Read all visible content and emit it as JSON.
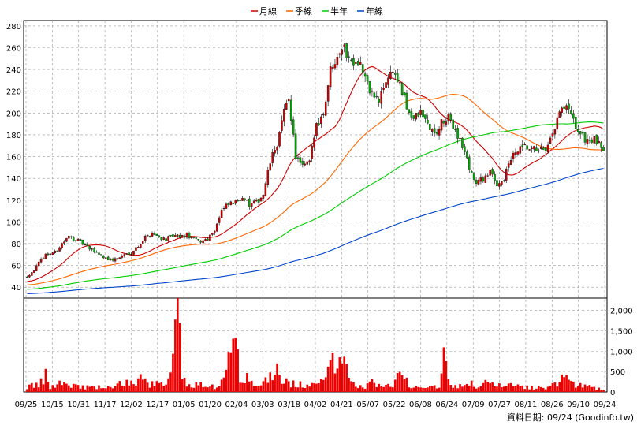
{
  "chart_data": {
    "type": "candlestick",
    "legend": {
      "placement": "top-center",
      "entries": [
        {
          "name": "月線",
          "color": "#cc0000"
        },
        {
          "name": "季線",
          "color": "#ff6600"
        },
        {
          "name": "半年",
          "color": "#00cc00"
        },
        {
          "name": "年線",
          "color": "#0044cc"
        }
      ]
    },
    "colors": {
      "up": "#cc0000",
      "down": "#00aa00",
      "volume": "#ee0000",
      "grid": "#999999"
    },
    "price_axis": {
      "ylim": [
        30,
        285
      ],
      "ticks": [
        40,
        60,
        80,
        100,
        120,
        140,
        160,
        180,
        200,
        220,
        240,
        260,
        280
      ]
    },
    "volume_axis": {
      "ylim": [
        0,
        2300
      ],
      "ticks": [
        0,
        500,
        1000,
        1500,
        2000
      ],
      "tick_labels": [
        "0",
        "500",
        "1,000",
        "1,500",
        "2,000"
      ]
    },
    "x_tick_labels": [
      "09/25",
      "10/15",
      "10/31",
      "11/17",
      "12/02",
      "12/17",
      "01/05",
      "01/20",
      "02/04",
      "03/03",
      "03/18",
      "04/02",
      "04/21",
      "05/07",
      "05/22",
      "06/08",
      "06/24",
      "07/09",
      "07/27",
      "08/11",
      "08/26",
      "09/10",
      "09/24"
    ],
    "source_text": "資料日期: 09/24 (Goodinfo.tw)",
    "price_anchors": [
      [
        0,
        50
      ],
      [
        3,
        56
      ],
      [
        5,
        62
      ],
      [
        8,
        70
      ],
      [
        12,
        72
      ],
      [
        15,
        80
      ],
      [
        18,
        86
      ],
      [
        21,
        84
      ],
      [
        24,
        80
      ],
      [
        27,
        75
      ],
      [
        30,
        72
      ],
      [
        33,
        68
      ],
      [
        36,
        65
      ],
      [
        39,
        66
      ],
      [
        42,
        70
      ],
      [
        45,
        72
      ],
      [
        48,
        78
      ],
      [
        51,
        86
      ],
      [
        54,
        90
      ],
      [
        57,
        86
      ],
      [
        60,
        84
      ],
      [
        63,
        87
      ],
      [
        66,
        86
      ],
      [
        69,
        88
      ],
      [
        72,
        84
      ],
      [
        75,
        82
      ],
      [
        78,
        85
      ],
      [
        81,
        93
      ],
      [
        84,
        110
      ],
      [
        87,
        116
      ],
      [
        90,
        118
      ],
      [
        93,
        124
      ],
      [
        96,
        115
      ],
      [
        99,
        118
      ],
      [
        102,
        125
      ],
      [
        105,
        155
      ],
      [
        108,
        172
      ],
      [
        111,
        200
      ],
      [
        113,
        215
      ],
      [
        116,
        160
      ],
      [
        119,
        150
      ],
      [
        122,
        155
      ],
      [
        125,
        190
      ],
      [
        128,
        200
      ],
      [
        131,
        240
      ],
      [
        134,
        255
      ],
      [
        136,
        262
      ],
      [
        138,
        255
      ],
      [
        140,
        248
      ],
      [
        142,
        250
      ],
      [
        144,
        245
      ],
      [
        147,
        225
      ],
      [
        150,
        215
      ],
      [
        152,
        210
      ],
      [
        155,
        230
      ],
      [
        158,
        240
      ],
      [
        161,
        225
      ],
      [
        164,
        205
      ],
      [
        167,
        195
      ],
      [
        170,
        200
      ],
      [
        173,
        190
      ],
      [
        176,
        180
      ],
      [
        179,
        190
      ],
      [
        182,
        195
      ],
      [
        185,
        185
      ],
      [
        188,
        170
      ],
      [
        191,
        150
      ],
      [
        194,
        135
      ],
      [
        197,
        140
      ],
      [
        200,
        145
      ],
      [
        203,
        135
      ],
      [
        206,
        140
      ],
      [
        209,
        158
      ],
      [
        212,
        165
      ],
      [
        215,
        168
      ],
      [
        218,
        165
      ],
      [
        221,
        168
      ],
      [
        224,
        162
      ],
      [
        227,
        180
      ],
      [
        230,
        200
      ],
      [
        233,
        205
      ],
      [
        236,
        192
      ],
      [
        239,
        180
      ],
      [
        242,
        175
      ],
      [
        245,
        175
      ],
      [
        248,
        168
      ]
    ],
    "volume_anchors": [
      [
        0,
        150
      ],
      [
        5,
        180
      ],
      [
        8,
        420
      ],
      [
        10,
        130
      ],
      [
        15,
        280
      ],
      [
        22,
        150
      ],
      [
        28,
        120
      ],
      [
        33,
        130
      ],
      [
        38,
        120
      ],
      [
        42,
        300
      ],
      [
        47,
        180
      ],
      [
        50,
        450
      ],
      [
        52,
        220
      ],
      [
        57,
        220
      ],
      [
        60,
        160
      ],
      [
        62,
        430
      ],
      [
        65,
        2300
      ],
      [
        67,
        300
      ],
      [
        72,
        200
      ],
      [
        78,
        180
      ],
      [
        83,
        130
      ],
      [
        86,
        450
      ],
      [
        88,
        1300
      ],
      [
        90,
        2000
      ],
      [
        92,
        500
      ],
      [
        96,
        300
      ],
      [
        99,
        150
      ],
      [
        104,
        330
      ],
      [
        107,
        650
      ],
      [
        110,
        330
      ],
      [
        113,
        250
      ],
      [
        118,
        200
      ],
      [
        121,
        180
      ],
      [
        124,
        160
      ],
      [
        128,
        300
      ],
      [
        131,
        1350
      ],
      [
        134,
        650
      ],
      [
        137,
        1350
      ],
      [
        140,
        220
      ],
      [
        145,
        120
      ],
      [
        148,
        200
      ],
      [
        150,
        280
      ],
      [
        155,
        170
      ],
      [
        158,
        200
      ],
      [
        161,
        450
      ],
      [
        165,
        220
      ],
      [
        170,
        130
      ],
      [
        173,
        170
      ],
      [
        178,
        170
      ],
      [
        180,
        880
      ],
      [
        183,
        220
      ],
      [
        187,
        180
      ],
      [
        191,
        250
      ],
      [
        194,
        130
      ],
      [
        197,
        300
      ],
      [
        201,
        180
      ],
      [
        205,
        150
      ],
      [
        208,
        170
      ],
      [
        211,
        150
      ],
      [
        214,
        130
      ],
      [
        220,
        120
      ],
      [
        226,
        150
      ],
      [
        230,
        250
      ],
      [
        233,
        450
      ],
      [
        236,
        220
      ],
      [
        240,
        150
      ],
      [
        245,
        120
      ],
      [
        248,
        90
      ]
    ]
  }
}
